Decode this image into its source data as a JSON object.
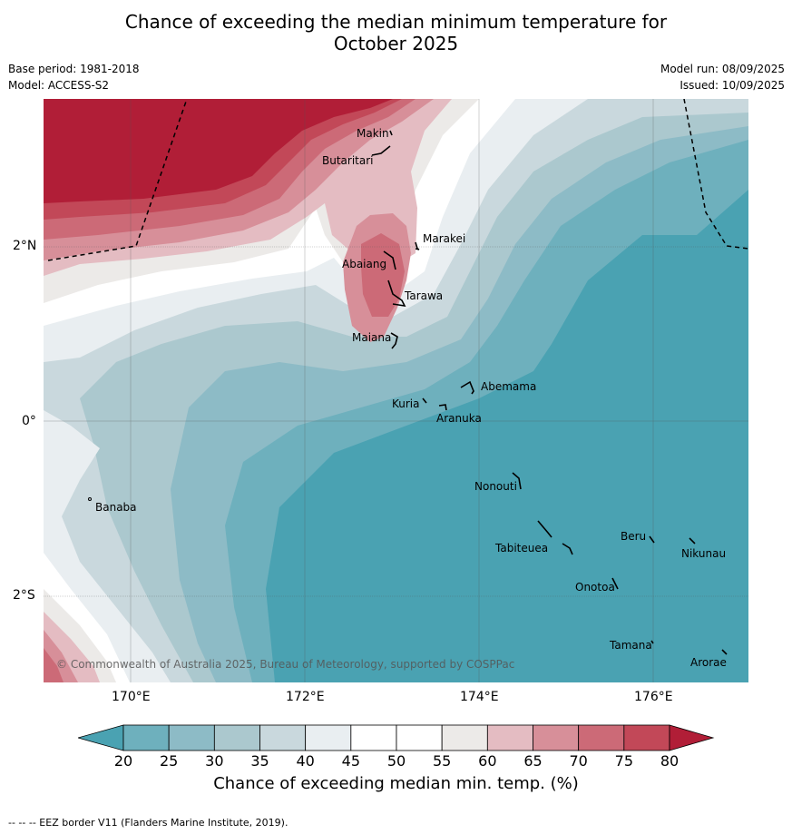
{
  "header": {
    "title_line1": "Chance of exceeding the median minimum temperature for",
    "title_line2": "October 2025",
    "base_period": "Base period: 1981-2018",
    "model": "Model: ACCESS-S2",
    "model_run": "Model run: 08/09/2025",
    "issued": "Issued: 10/09/2025"
  },
  "map": {
    "lat_labels": [
      "2°N",
      "0°",
      "2°S"
    ],
    "lon_labels": [
      "170°E",
      "172°E",
      "174°E",
      "176°E"
    ],
    "places": [
      "Makin",
      "Butaritari",
      "Marakei",
      "Abaiang",
      "Tarawa",
      "Maiana",
      "Abemama",
      "Kuria",
      "Aranuka",
      "Banaba",
      "Nonouti",
      "Beru",
      "Nikunau",
      "Tabiteuea",
      "Onotoa",
      "Tamana",
      "Arorae"
    ],
    "copyright": "© Commonwealth of Australia 2025, Bureau of Meteorology, supported by COSPPac"
  },
  "colorbar": {
    "ticks": [
      "20",
      "25",
      "30",
      "35",
      "40",
      "45",
      "50",
      "55",
      "60",
      "65",
      "70",
      "75",
      "80"
    ],
    "colors": [
      "#4aa2b2",
      "#6eb0bd",
      "#8dbbc6",
      "#abc8ce",
      "#c9d8dd",
      "#e9eef1",
      "#ffffff",
      "#ffffff",
      "#eceae8",
      "#e4bcc2",
      "#d78f99",
      "#cc6a77",
      "#c24858",
      "#b11e37"
    ],
    "label": "Chance of exceeding median min. temp. (%)"
  },
  "footer": {
    "legend": "--  --  -- EEZ border V11 (Flanders Marine Institute, 2019)."
  }
}
